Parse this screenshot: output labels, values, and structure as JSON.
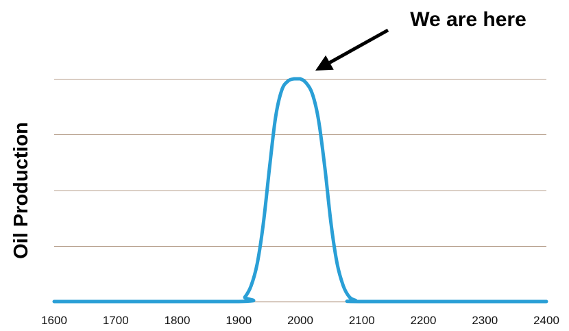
{
  "chart_data": {
    "type": "line",
    "title": "",
    "xlabel": "",
    "ylabel": "Oil Production",
    "xlim": [
      1600,
      2400
    ],
    "ylim": [
      0,
      1
    ],
    "x_ticks": [
      "1600",
      "1700",
      "1800",
      "1900",
      "2000",
      "2100",
      "2200",
      "2300",
      "2400"
    ],
    "grid": true,
    "legend": "none",
    "series": [
      {
        "color": "#2a9fd6",
        "x": [
          1600,
          1900,
          1910,
          1920,
          1930,
          1940,
          1950,
          1960,
          1970,
          1980,
          1990,
          2000,
          2010,
          2020,
          2030,
          2040,
          2050,
          2060,
          2070,
          2080,
          2090,
          2100,
          2400
        ],
        "y": [
          0.0,
          0.0,
          0.02,
          0.07,
          0.17,
          0.35,
          0.6,
          0.83,
          0.95,
          0.99,
          1.0,
          1.0,
          0.98,
          0.93,
          0.81,
          0.6,
          0.35,
          0.17,
          0.07,
          0.02,
          0.005,
          0.0,
          0.0
        ]
      }
    ],
    "annotations": [
      {
        "text": "We are here",
        "x": 2000,
        "y": 1.0
      }
    ]
  },
  "colors": {
    "line": "#2a9fd6",
    "grid": "#b49c88",
    "axis": "#b49c88",
    "text": "#000000"
  }
}
